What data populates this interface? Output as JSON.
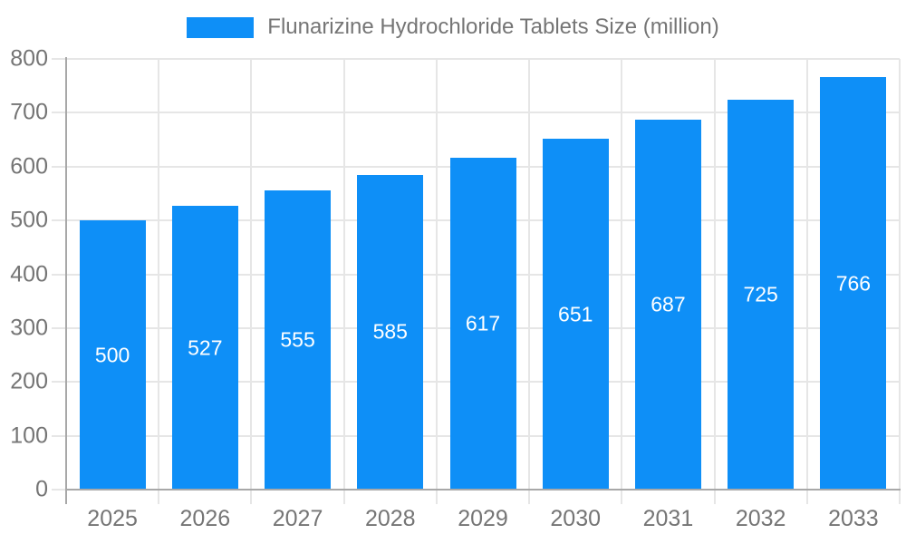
{
  "chart_data": {
    "type": "bar",
    "title": "Flunarizine Hydrochloride Tablets Size (million)",
    "legend": {
      "position": "top",
      "label": "Flunarizine Hydrochloride Tablets Size (million)"
    },
    "categories": [
      "2025",
      "2026",
      "2027",
      "2028",
      "2029",
      "2030",
      "2031",
      "2032",
      "2033"
    ],
    "values": [
      500,
      527,
      555,
      585,
      617,
      651,
      687,
      725,
      766
    ],
    "xlabel": "",
    "ylabel": "",
    "ylim": [
      0,
      800
    ],
    "yticks": [
      0,
      100,
      200,
      300,
      400,
      500,
      600,
      700,
      800
    ],
    "grid": true,
    "value_labels": "inside-center-white"
  },
  "colors": {
    "bar": "#0e8ff7",
    "grid": "#e6e6e6",
    "axis": "#a8a8a8",
    "text": "#757575",
    "value_label": "#ffffff"
  }
}
